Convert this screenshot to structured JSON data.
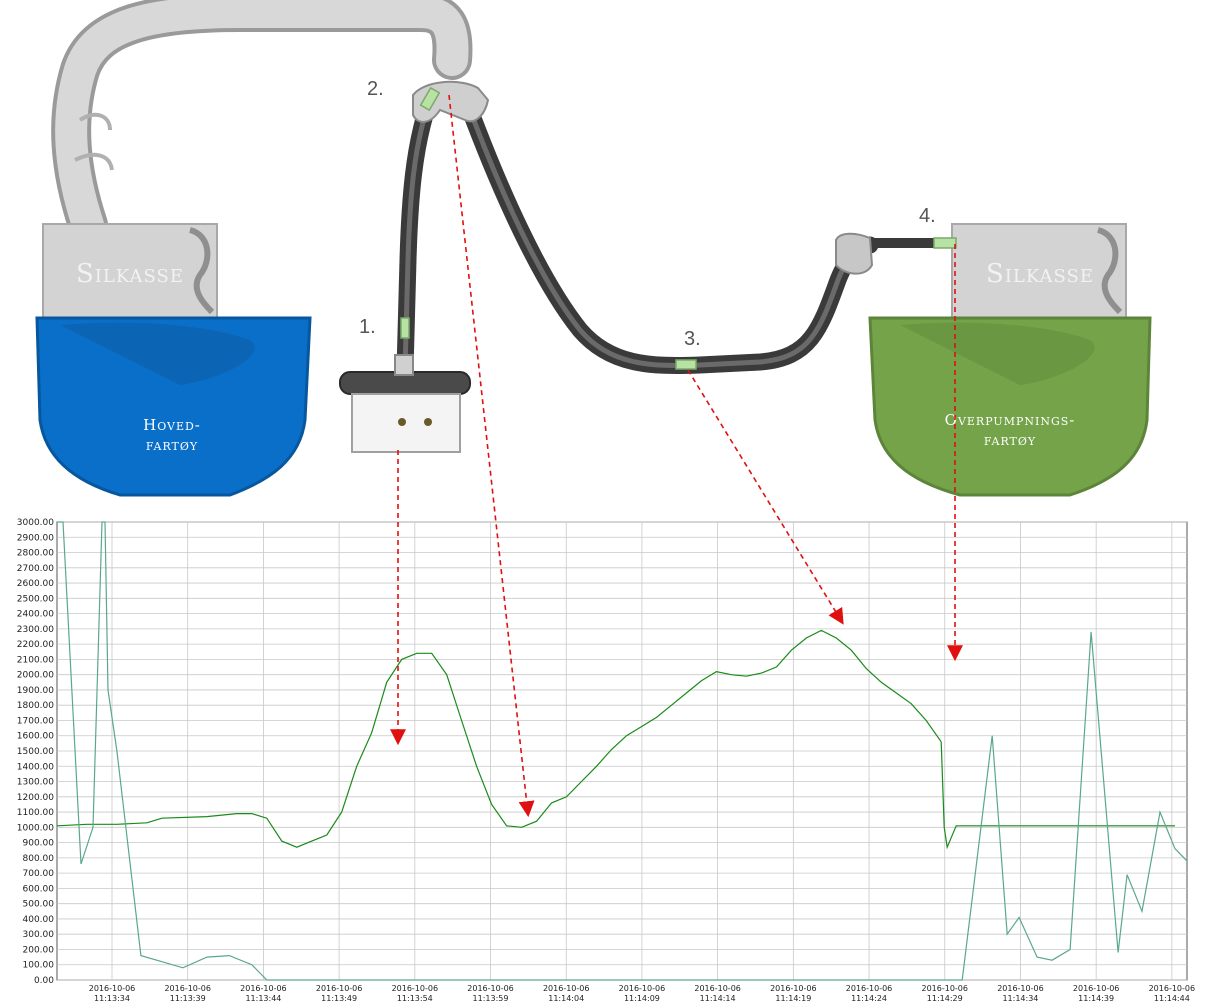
{
  "diagram": {
    "markers": [
      "1.",
      "2.",
      "3.",
      "4."
    ],
    "boxes": {
      "left_silkasse": "Silkasse",
      "right_silkasse": "Silkasse"
    },
    "vessels": {
      "left": {
        "line1": "Hoved-",
        "line2": "fartøy",
        "color": "#0a6fc9"
      },
      "right": {
        "line1": "Overpumpnings-",
        "line2": "fartøy",
        "color": "#74a34a"
      }
    },
    "arrow_color": "#e01010",
    "sensor_color": "#b8e2a4"
  },
  "chart_data": {
    "type": "line",
    "ylim": [
      0,
      3000
    ],
    "yticks": [
      "3000.00",
      "2900.00",
      "2800.00",
      "2700.00",
      "2600.00",
      "2500.00",
      "2400.00",
      "2300.00",
      "2200.00",
      "2100.00",
      "2000.00",
      "1900.00",
      "1800.00",
      "1700.00",
      "1600.00",
      "1500.00",
      "1400.00",
      "1300.00",
      "1200.00",
      "1100.00",
      "1000.00",
      "900.00",
      "800.00",
      "700.00",
      "600.00",
      "500.00",
      "400.00",
      "300.00",
      "200.00",
      "100.00",
      "0.00"
    ],
    "xtick_dates": [
      "2016-10-06",
      "2016-10-06",
      "2016-10-06",
      "2016-10-06",
      "2016-10-06",
      "2016-10-06",
      "2016-10-06",
      "2016-10-06",
      "2016-10-06",
      "2016-10-06",
      "2016-10-06",
      "2016-10-06",
      "2016-10-06",
      "2016-10-06",
      "2016-10-06"
    ],
    "xtick_times": [
      "11:13:34",
      "11:13:39",
      "11:13:44",
      "11:13:49",
      "11:13:54",
      "11:13:59",
      "11:14:04",
      "11:14:09",
      "11:14:14",
      "11:14:19",
      "11:14:24",
      "11:14:29",
      "11:14:34",
      "11:14:39",
      "11:14:44"
    ],
    "grid": true,
    "series": [
      {
        "color": "#1a8a1a",
        "x": [
          0,
          2.0,
          4.0,
          6.0,
          7.0,
          10.0,
          12.0,
          13.0,
          14.0,
          15.0,
          16.0,
          17.0,
          18.0,
          19.0,
          20.0,
          21.0,
          22.0,
          23.0,
          24.0,
          25.0,
          26.0,
          27.0,
          28.0,
          29.0,
          30.0,
          31.0,
          32.0,
          33.0,
          34.0,
          35.0,
          36.0,
          37.0,
          38.0,
          39.0,
          40.0,
          41.0,
          42.0,
          43.0,
          44.0,
          45.0,
          46.0,
          47.0,
          48.0,
          49.0,
          50.0,
          51.0,
          52.0,
          53.0,
          54.0,
          55.0,
          56.0,
          57.0,
          58.0,
          59.0
        ],
        "y": [
          1010,
          1020,
          1020,
          1030,
          1060,
          1070,
          1090,
          1090,
          1060,
          910,
          870,
          910,
          950,
          1100,
          1400,
          1620,
          1950,
          2100,
          2140,
          2140,
          2000,
          1700,
          1400,
          1150,
          1010,
          1000,
          1040,
          1160,
          1200,
          1300,
          1400,
          1510,
          1600,
          1660,
          1720,
          1800,
          1880,
          1960,
          2020,
          2000,
          1990,
          2010,
          2050,
          2160,
          2240,
          2290,
          2240,
          2160,
          2040,
          1950,
          1880,
          1810,
          1700,
          1560
        ]
      },
      {
        "color": "#1a8a1a",
        "x": [
          59.0,
          59.2,
          59.4,
          60.0,
          63.0,
          65.0,
          67.0,
          69.0,
          71.0,
          73.0,
          74.6
        ],
        "y": [
          1560,
          1000,
          870,
          1010,
          1010,
          1010,
          1010,
          1010,
          1010,
          1010,
          1010
        ]
      },
      {
        "color": "#5aa88a",
        "x": [
          0,
          0.4,
          1.6,
          2.4,
          3.0,
          3.2,
          3.4,
          4.0,
          5.6,
          7.0,
          8.4,
          10.0,
          11.5,
          13.0,
          14.0,
          15.4,
          16.5,
          18.0,
          21.0,
          25.0,
          30.0,
          35.0,
          40.0,
          45.0,
          50.0,
          55.0,
          59.0
        ],
        "y": [
          3000,
          3000,
          760,
          1000,
          3000,
          3000,
          1900,
          1500,
          160,
          120,
          80,
          150,
          160,
          100,
          0,
          0,
          0,
          0,
          0,
          0,
          0,
          0,
          0,
          0,
          0,
          0,
          0
        ]
      },
      {
        "color": "#5aa88a",
        "x": [
          59.0,
          60.4,
          62.4,
          63.4,
          64.2,
          65.4,
          66.4,
          67.6,
          69.0,
          70.8,
          71.4,
          72.4,
          73.6,
          74.6,
          75.4
        ],
        "y": [
          0,
          0,
          1600,
          300,
          410,
          150,
          130,
          200,
          2280,
          180,
          690,
          450,
          1100,
          860,
          780
        ]
      }
    ]
  }
}
